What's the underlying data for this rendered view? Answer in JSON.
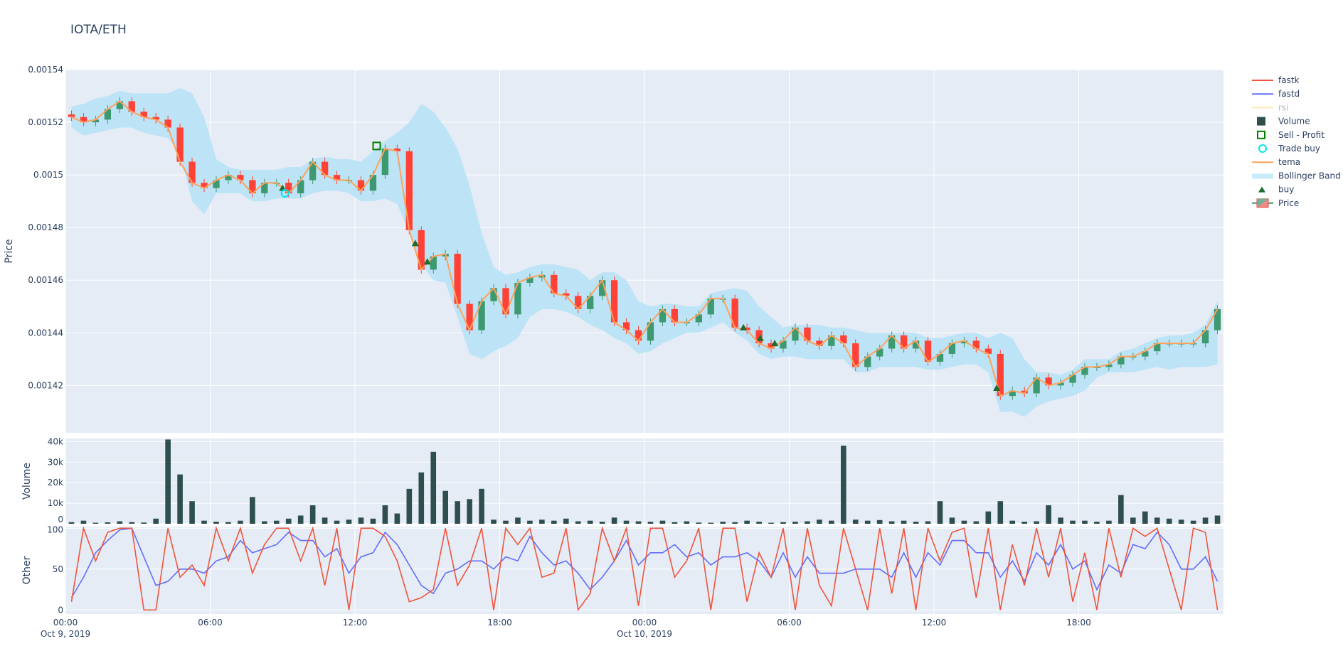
{
  "chart_data": {
    "type": "candlestick",
    "title": "IOTA/ETH",
    "x_start": "2019-10-09 00:00",
    "x_step_minutes": 30,
    "x_tick_labels": [
      "00:00",
      "06:00",
      "12:00",
      "18:00",
      "00:00",
      "06:00",
      "12:00",
      "18:00"
    ],
    "x_tick_hours": [
      0,
      6,
      12,
      18,
      24,
      30,
      36,
      42
    ],
    "x_date_labels": [
      {
        "hour": 0,
        "label": "Oct 9, 2019"
      },
      {
        "hour": 24,
        "label": "Oct 10, 2019"
      }
    ],
    "xlim_hours": [
      0,
      48
    ],
    "grid": true,
    "legend_position": "right",
    "colors": {
      "increasing": "#3d9970",
      "decreasing": "#ff4136",
      "tema": "#ffa15a",
      "band": "#bde3f6",
      "volume": "#2f4f4f",
      "fastk": "#ef553b",
      "fastd": "#636efa",
      "rsi": "#fde9b5",
      "buy": "#1e6b2e",
      "trade_buy": "#00e5ee",
      "sell_profit": "#008000",
      "background": "#e5ecf6"
    },
    "legend": [
      "fastk",
      "fastd",
      "rsi",
      "Volume",
      "Sell - Profit",
      "Trade buy",
      "tema",
      "Bollinger Band",
      "buy",
      "Price"
    ],
    "panels": {
      "price": {
        "ylabel": "Price",
        "ylim": [
          0.001402,
          0.00154
        ],
        "ticks": [
          0.00142,
          0.00144,
          0.00146,
          0.00148,
          0.0015,
          0.00152,
          0.00154
        ],
        "tick_labels": [
          "0.00142",
          "0.00144",
          "0.00146",
          "0.00148",
          "0.0015",
          "0.00152",
          "0.00154"
        ]
      },
      "volume": {
        "ylabel": "Volume",
        "ylim": [
          0,
          41500
        ],
        "ticks": [
          0,
          10000,
          20000,
          30000,
          40000
        ],
        "tick_labels": [
          "0",
          "10k",
          "20k",
          "30k",
          "40k"
        ]
      },
      "other": {
        "ylabel": "Other",
        "ylim": [
          -5,
          102
        ],
        "ticks": [
          0,
          50,
          100
        ],
        "tick_labels": [
          "0",
          "50",
          "100"
        ]
      }
    },
    "close": [
      0.001522,
      0.00152,
      0.001521,
      0.001525,
      0.001528,
      0.001524,
      0.001522,
      0.001521,
      0.001518,
      0.001505,
      0.001497,
      0.001495,
      0.001498,
      0.0015,
      0.001498,
      0.001493,
      0.001497,
      0.001497,
      0.001493,
      0.001498,
      0.001505,
      0.0015,
      0.001498,
      0.001498,
      0.001494,
      0.0015,
      0.00151,
      0.001509,
      0.001479,
      0.001464,
      0.001469,
      0.00147,
      0.001451,
      0.001441,
      0.001452,
      0.001457,
      0.001447,
      0.001459,
      0.001461,
      0.001462,
      0.001455,
      0.001454,
      0.001449,
      0.001454,
      0.00146,
      0.001444,
      0.001441,
      0.001437,
      0.001444,
      0.001449,
      0.001444,
      0.001444,
      0.001447,
      0.001453,
      0.001453,
      0.001442,
      0.001441,
      0.001436,
      0.001434,
      0.001437,
      0.001442,
      0.001437,
      0.001435,
      0.001439,
      0.001436,
      0.001427,
      0.001431,
      0.001434,
      0.001439,
      0.001434,
      0.001437,
      0.001429,
      0.001432,
      0.001436,
      0.001437,
      0.001434,
      0.001432,
      0.001416,
      0.001418,
      0.001417,
      0.001423,
      0.00142,
      0.001421,
      0.001424,
      0.001427,
      0.001427,
      0.001428,
      0.001431,
      0.001431,
      0.001433,
      0.001436,
      0.001436,
      0.001436,
      0.001436,
      0.001441,
      0.001449
    ],
    "bb_upper": [
      0.001526,
      0.001527,
      0.001529,
      0.00153,
      0.001532,
      0.001531,
      0.001531,
      0.001531,
      0.001531,
      0.001533,
      0.001531,
      0.001522,
      0.001506,
      0.001503,
      0.001502,
      0.001502,
      0.001502,
      0.001502,
      0.001503,
      0.001503,
      0.001506,
      0.001507,
      0.001506,
      0.001506,
      0.001505,
      0.001509,
      0.001513,
      0.001516,
      0.00152,
      0.001527,
      0.001524,
      0.001518,
      0.00151,
      0.001496,
      0.001478,
      0.001465,
      0.001462,
      0.001463,
      0.001465,
      0.001466,
      0.001466,
      0.001465,
      0.001464,
      0.00146,
      0.001463,
      0.001463,
      0.00146,
      0.001452,
      0.00145,
      0.001451,
      0.001451,
      0.00145,
      0.00145,
      0.001455,
      0.001456,
      0.001457,
      0.001456,
      0.00145,
      0.001446,
      0.001442,
      0.001443,
      0.001443,
      0.001443,
      0.001442,
      0.001442,
      0.001441,
      0.00144,
      0.00144,
      0.00144,
      0.00144,
      0.00144,
      0.001438,
      0.001438,
      0.001439,
      0.00144,
      0.00144,
      0.001438,
      0.00144,
      0.001438,
      0.00143,
      0.001425,
      0.001425,
      0.001424,
      0.001426,
      0.00143,
      0.00143,
      0.00143,
      0.001433,
      0.001434,
      0.001436,
      0.001438,
      0.001439,
      0.001439,
      0.00144,
      0.001443,
      0.001452
    ],
    "bb_lower": [
      0.001518,
      0.001515,
      0.001516,
      0.001517,
      0.001518,
      0.001518,
      0.001516,
      0.001515,
      0.001514,
      0.001508,
      0.00149,
      0.001485,
      0.001493,
      0.001493,
      0.001493,
      0.00149,
      0.00149,
      0.001491,
      0.001491,
      0.001491,
      0.001493,
      0.001494,
      0.001494,
      0.001493,
      0.00149,
      0.00149,
      0.001491,
      0.001489,
      0.001478,
      0.001466,
      0.00146,
      0.001459,
      0.001446,
      0.001432,
      0.00143,
      0.001433,
      0.001435,
      0.001438,
      0.001446,
      0.001449,
      0.001449,
      0.001448,
      0.001446,
      0.001443,
      0.001441,
      0.001438,
      0.001436,
      0.001432,
      0.001433,
      0.001436,
      0.001438,
      0.00144,
      0.00144,
      0.001442,
      0.001444,
      0.00144,
      0.001437,
      0.001432,
      0.00143,
      0.001431,
      0.001431,
      0.00143,
      0.00143,
      0.00143,
      0.00143,
      0.001425,
      0.001425,
      0.001427,
      0.001427,
      0.001427,
      0.001427,
      0.001426,
      0.001426,
      0.001427,
      0.001428,
      0.001428,
      0.001425,
      0.00141,
      0.00141,
      0.001408,
      0.001412,
      0.001414,
      0.001415,
      0.001416,
      0.001418,
      0.001423,
      0.001425,
      0.001425,
      0.001425,
      0.001426,
      0.001427,
      0.001426,
      0.001427,
      0.001427,
      0.001427,
      0.001428
    ],
    "volume": [
      800,
      1500,
      500,
      700,
      1200,
      800,
      600,
      2500,
      41000,
      24000,
      11000,
      1500,
      1000,
      800,
      1500,
      13000,
      1200,
      1500,
      2500,
      4000,
      9000,
      3000,
      1500,
      2000,
      3000,
      2500,
      9000,
      5000,
      17000,
      25000,
      35000,
      16000,
      11000,
      12000,
      17000,
      2000,
      1500,
      3000,
      1500,
      2000,
      1500,
      2500,
      1200,
      1500,
      1000,
      3000,
      1500,
      1200,
      1000,
      1500,
      800,
      1200,
      600,
      500,
      1000,
      800,
      1500,
      1000,
      500,
      800,
      1000,
      1200,
      2000,
      1500,
      38000,
      2000,
      1500,
      1800,
      1200,
      1500,
      1000,
      1200,
      11000,
      3000,
      1500,
      1200,
      6000,
      11000,
      1500,
      1000,
      1200,
      9000,
      3000,
      1500,
      1500,
      1000,
      1500,
      14000,
      3000,
      6000,
      3000,
      2500,
      2000,
      1500,
      3000,
      4000
    ],
    "fastk": [
      10,
      100,
      60,
      95,
      100,
      100,
      0,
      0,
      100,
      40,
      55,
      30,
      100,
      60,
      100,
      45,
      80,
      100,
      100,
      60,
      100,
      30,
      100,
      0,
      100,
      100,
      90,
      60,
      10,
      15,
      25,
      100,
      30,
      55,
      100,
      0,
      100,
      80,
      100,
      40,
      45,
      100,
      0,
      20,
      100,
      60,
      100,
      5,
      100,
      100,
      40,
      60,
      100,
      0,
      100,
      100,
      10,
      70,
      40,
      100,
      0,
      100,
      30,
      5,
      100,
      50,
      0,
      100,
      20,
      100,
      0,
      100,
      60,
      95,
      100,
      15,
      100,
      0,
      80,
      30,
      100,
      40,
      100,
      10,
      70,
      0,
      100,
      40,
      100,
      90,
      100,
      50,
      0,
      100,
      95,
      0
    ],
    "fastd": [
      15,
      40,
      70,
      85,
      98,
      100,
      65,
      30,
      35,
      50,
      50,
      45,
      60,
      65,
      85,
      70,
      75,
      80,
      95,
      85,
      85,
      65,
      75,
      45,
      65,
      70,
      95,
      80,
      55,
      30,
      20,
      45,
      50,
      60,
      60,
      50,
      65,
      60,
      90,
      70,
      55,
      60,
      45,
      25,
      40,
      60,
      85,
      55,
      70,
      70,
      80,
      65,
      70,
      55,
      65,
      65,
      70,
      60,
      40,
      70,
      40,
      65,
      45,
      45,
      45,
      50,
      50,
      50,
      40,
      70,
      40,
      70,
      55,
      85,
      85,
      70,
      70,
      40,
      60,
      35,
      70,
      55,
      80,
      50,
      60,
      25,
      55,
      45,
      80,
      75,
      95,
      80,
      50,
      50,
      65,
      35
    ],
    "buy_markers": [
      {
        "hour": 9.0,
        "price": 0.001495
      },
      {
        "hour": 14.5,
        "price": 0.001474
      },
      {
        "hour": 15.0,
        "price": 0.001467
      },
      {
        "hour": 28.1,
        "price": 0.001442
      },
      {
        "hour": 28.8,
        "price": 0.001438
      },
      {
        "hour": 29.4,
        "price": 0.001436
      },
      {
        "hour": 38.6,
        "price": 0.001419
      }
    ],
    "trade_buy": [
      {
        "hour": 9.1,
        "price": 0.001493
      }
    ],
    "sell_profit": [
      {
        "hour": 12.9,
        "price": 0.001511
      }
    ]
  }
}
